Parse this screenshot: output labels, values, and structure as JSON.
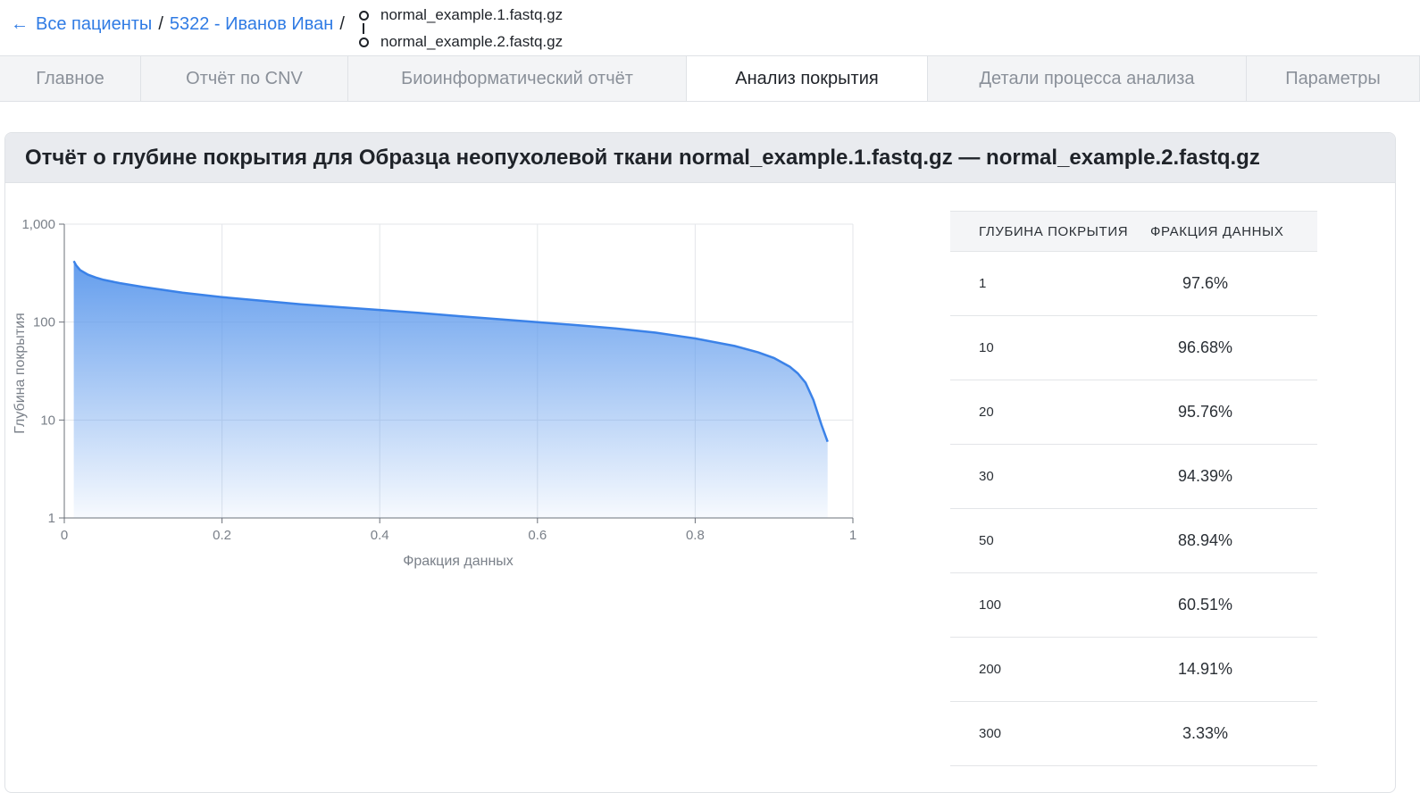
{
  "breadcrumb": {
    "back_icon": "arrow-left-icon",
    "all_patients": "Все пациенты",
    "separator": "/",
    "patient": "5322 - Иванов Иван",
    "files": [
      "normal_example.1.fastq.gz",
      "normal_example.2.fastq.gz"
    ]
  },
  "tabs": [
    {
      "label": "Главное"
    },
    {
      "label": "Отчёт по CNV"
    },
    {
      "label": "Биоинформатический отчёт"
    },
    {
      "label": "Анализ покрытия",
      "active": true
    },
    {
      "label": "Детали процесса анализа"
    },
    {
      "label": "Параметры"
    }
  ],
  "report": {
    "title": "Отчёт о глубине покрытия для Образца неопухолевой ткани normal_example.1.fastq.gz — normal_example.2.fastq.gz"
  },
  "colors": {
    "accent": "#2f7be4",
    "area_top": "#5b98ec",
    "line": "#3b82e8"
  },
  "chart_data": {
    "type": "area",
    "xlabel": "Фракция данных",
    "ylabel": "Глубина покрытия",
    "xlim": [
      0,
      1
    ],
    "ylim": [
      1,
      1000
    ],
    "yscale": "log",
    "grid": true,
    "x_ticks": [
      "0",
      "0.2",
      "0.4",
      "0.6",
      "0.8",
      "1"
    ],
    "y_ticks": [
      "1",
      "10",
      "100",
      "1,000"
    ],
    "series": [
      {
        "x": [
          0.012,
          0.015,
          0.02,
          0.03,
          0.04,
          0.05,
          0.07,
          0.1,
          0.15,
          0.2,
          0.25,
          0.3,
          0.35,
          0.4,
          0.45,
          0.5,
          0.55,
          0.6,
          0.65,
          0.7,
          0.75,
          0.8,
          0.85,
          0.88,
          0.9,
          0.92,
          0.93,
          0.94,
          0.95,
          0.96,
          0.968
        ],
        "y": [
          420,
          380,
          340,
          305,
          285,
          270,
          250,
          228,
          200,
          180,
          165,
          152,
          142,
          133,
          124,
          115,
          107,
          100,
          93,
          86,
          78,
          68,
          57,
          49,
          43,
          35,
          30,
          24,
          16,
          9,
          6
        ]
      }
    ]
  },
  "table": {
    "headers": [
      "ГЛУБИНА ПОКРЫТИЯ",
      "ФРАКЦИЯ ДАННЫХ"
    ],
    "rows": [
      {
        "depth": "1",
        "fraction": "97.6%"
      },
      {
        "depth": "10",
        "fraction": "96.68%"
      },
      {
        "depth": "20",
        "fraction": "95.76%"
      },
      {
        "depth": "30",
        "fraction": "94.39%"
      },
      {
        "depth": "50",
        "fraction": "88.94%"
      },
      {
        "depth": "100",
        "fraction": "60.51%"
      },
      {
        "depth": "200",
        "fraction": "14.91%"
      },
      {
        "depth": "300",
        "fraction": "3.33%"
      }
    ]
  }
}
